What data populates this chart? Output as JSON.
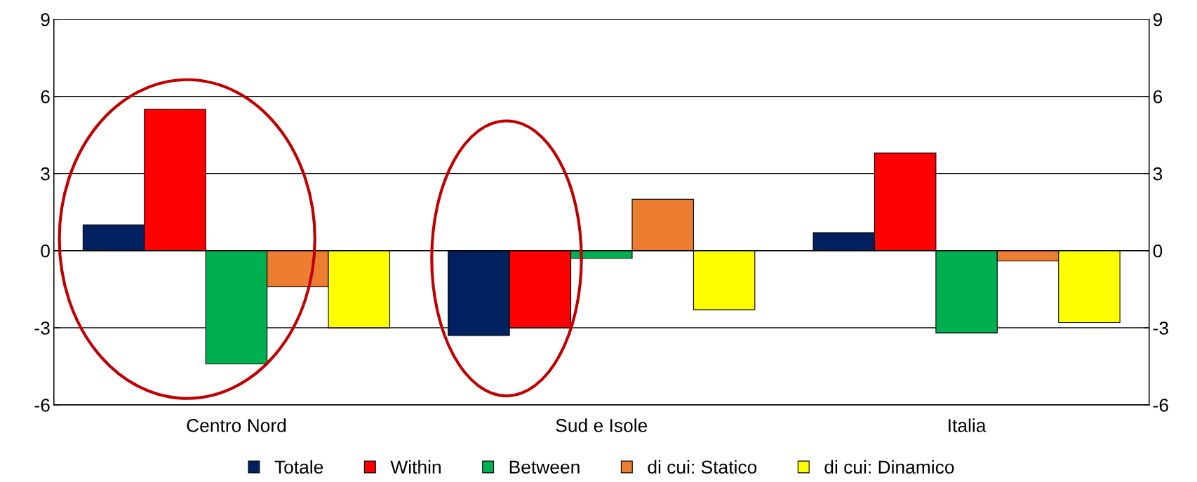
{
  "chart_data": {
    "type": "bar",
    "categories": [
      "Centro Nord",
      "Sud e Isole",
      "Italia"
    ],
    "series": [
      {
        "name": "Totale",
        "color": "#002060",
        "values": [
          1.0,
          -3.3,
          0.7
        ]
      },
      {
        "name": "Within",
        "color": "#ff0000",
        "values": [
          5.5,
          -3.0,
          3.8
        ]
      },
      {
        "name": "Between",
        "color": "#00b050",
        "values": [
          -4.4,
          -0.3,
          -3.2
        ]
      },
      {
        "name": "di cui: Statico",
        "color": "#ed7d31",
        "values": [
          -1.4,
          2.0,
          -0.4
        ]
      },
      {
        "name": "di cui: Dinamico",
        "color": "#ffff00",
        "values": [
          -3.0,
          -2.3,
          -2.8
        ]
      }
    ],
    "ylim": [
      -6,
      9
    ],
    "yticks": [
      -6,
      -3,
      0,
      3,
      6,
      9
    ],
    "y2lim": [
      -6,
      9
    ],
    "y2ticks": [
      -6,
      -3,
      0,
      3,
      6,
      9
    ],
    "grid": "y",
    "legend": "bottom"
  }
}
